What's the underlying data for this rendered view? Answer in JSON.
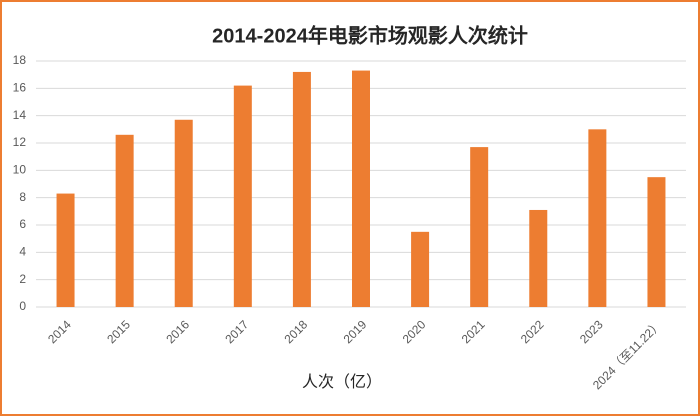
{
  "chart_data": {
    "type": "bar",
    "title": "2014-2024年电影市场观影人次统计",
    "x_label": "人次（亿）",
    "categories": [
      "2014",
      "2015",
      "2016",
      "2017",
      "2018",
      "2019",
      "2020",
      "2021",
      "2022",
      "2023",
      "2024（至11.22）"
    ],
    "values": [
      8.3,
      12.6,
      13.7,
      16.2,
      17.2,
      17.3,
      5.5,
      11.7,
      7.1,
      13.0,
      9.5
    ],
    "color": "#ed7d31",
    "ylim": [
      0,
      18
    ],
    "yticks": [
      0,
      2,
      4,
      6,
      8,
      10,
      12,
      14,
      16,
      18
    ],
    "grid": true
  }
}
